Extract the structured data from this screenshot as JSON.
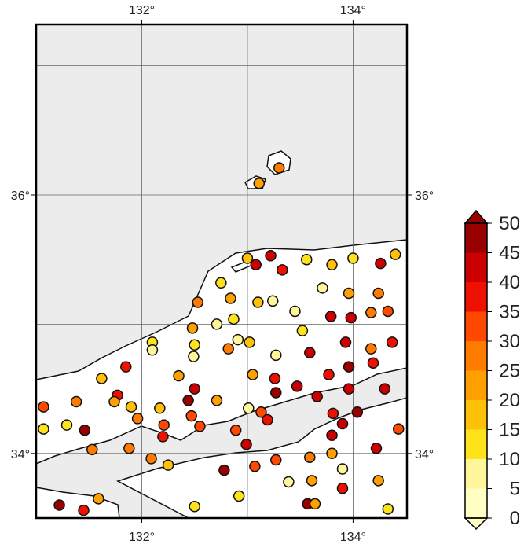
{
  "chart_data": {
    "type": "scatter",
    "xlim": [
      131.0,
      134.51
    ],
    "ylim": [
      33.5,
      37.32
    ],
    "xticks": [
      {
        "value": 132,
        "label": "132°"
      },
      {
        "value": 134,
        "label": "134°"
      }
    ],
    "yticks": [
      {
        "value": 34,
        "label": "34°"
      },
      {
        "value": 36,
        "label": "36°"
      }
    ],
    "xgrid": [
      132,
      133,
      134
    ],
    "ygrid": [
      34,
      35,
      36,
      37
    ],
    "grid": true,
    "x": [
      133.3,
      133.11,
      133.0,
      133.22,
      133.08,
      133.33,
      133.56,
      133.8,
      134.0,
      134.26,
      134.4,
      132.75,
      132.84,
      133.1,
      133.24,
      133.71,
      133.96,
      134.24,
      132.53,
      132.48,
      132.71,
      132.87,
      133.45,
      133.79,
      133.98,
      134.17,
      134.33,
      132.1,
      132.1,
      132.5,
      132.91,
      132.82,
      133.02,
      133.52,
      133.93,
      134.17,
      134.37,
      131.85,
      131.62,
      132.49,
      133.27,
      133.59,
      133.05,
      132.35,
      131.77,
      131.74,
      131.38,
      131.07,
      131.9,
      131.96,
      132.17,
      132.44,
      132.5,
      132.71,
      132.47,
      132.21,
      132.2,
      133.01,
      133.13,
      133.27,
      133.26,
      133.47,
      133.66,
      133.77,
      133.96,
      133.96,
      134.04,
      134.19,
      134.3,
      134.43,
      132.55,
      132.89,
      132.99,
      133.19,
      133.81,
      133.8,
      133.9,
      133.8,
      134.22,
      131.46,
      131.29,
      131.07,
      131.53,
      131.88,
      132.09,
      132.25,
      132.78,
      133.07,
      133.27,
      133.59,
      133.39,
      133.61,
      133.9,
      134.24,
      133.9,
      132.92,
      133.57,
      133.64,
      131.22,
      131.45,
      131.59,
      132.5,
      134.33
    ],
    "y": [
      36.21,
      36.09,
      35.51,
      35.53,
      35.46,
      35.42,
      35.5,
      35.46,
      35.51,
      35.47,
      35.54,
      35.32,
      35.2,
      35.17,
      35.18,
      35.28,
      35.24,
      35.24,
      35.17,
      34.97,
      35.0,
      35.04,
      35.1,
      35.06,
      35.05,
      35.09,
      35.1,
      34.86,
      34.8,
      34.84,
      34.88,
      34.81,
      34.86,
      34.95,
      34.86,
      34.81,
      34.86,
      34.67,
      34.58,
      34.75,
      34.76,
      34.78,
      34.61,
      34.6,
      34.45,
      34.4,
      34.4,
      34.36,
      34.36,
      34.27,
      34.35,
      34.41,
      34.5,
      34.41,
      34.29,
      34.22,
      34.13,
      34.35,
      34.32,
      34.47,
      34.58,
      34.52,
      34.44,
      34.61,
      34.67,
      34.5,
      34.32,
      34.7,
      34.5,
      34.19,
      34.21,
      34.18,
      34.07,
      34.26,
      34.31,
      34.14,
      34.23,
      34.0,
      34.04,
      34.18,
      34.22,
      34.19,
      34.03,
      34.04,
      33.96,
      33.91,
      33.87,
      33.9,
      33.95,
      33.97,
      33.78,
      33.79,
      33.88,
      33.79,
      33.73,
      33.67,
      33.61,
      33.61,
      33.6,
      33.56,
      33.65,
      33.59,
      33.57
    ],
    "values": [
      27,
      22,
      17,
      42,
      42,
      38,
      13,
      17,
      13,
      42,
      17,
      13,
      22,
      17,
      7,
      7,
      22,
      28,
      27,
      22,
      7,
      13,
      7,
      42,
      42,
      27,
      32,
      13,
      7,
      13,
      8,
      27,
      17,
      13,
      42,
      27,
      38,
      37,
      17,
      8,
      7,
      42,
      22,
      22,
      37,
      22,
      27,
      32,
      17,
      27,
      17,
      47,
      42,
      22,
      32,
      32,
      38,
      7,
      32,
      47,
      38,
      42,
      42,
      38,
      47,
      42,
      47,
      38,
      42,
      32,
      32,
      32,
      42,
      37,
      37,
      42,
      42,
      22,
      42,
      47,
      13,
      13,
      27,
      27,
      27,
      17,
      47,
      32,
      32,
      27,
      7,
      22,
      8,
      22,
      37,
      13,
      47,
      22,
      47,
      37,
      22,
      13,
      13
    ],
    "colorbar": {
      "ticks": [
        0,
        5,
        10,
        15,
        20,
        25,
        30,
        35,
        40,
        45,
        50
      ],
      "colors": [
        "#ffffc4",
        "#fff59a",
        "#ffe31a",
        "#ffc107",
        "#ffa000",
        "#ff7b00",
        "#ff4800",
        "#ee1100",
        "#cc0000",
        "#990000"
      ],
      "under_color": "#ffffc4",
      "over_color": "#990000"
    }
  }
}
